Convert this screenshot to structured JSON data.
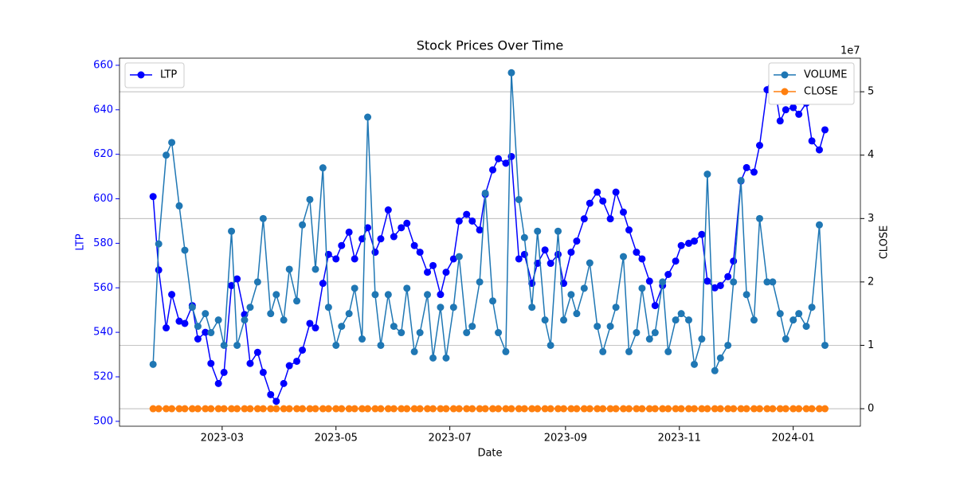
{
  "chart_data": {
    "type": "line",
    "title": "Stock Prices Over Time",
    "xlabel": "Date",
    "ylabel": "LTP",
    "y2label": "CLOSE",
    "y2_offset": "1e7",
    "x": [
      "2023-01-23",
      "2023-01-26",
      "2023-01-30",
      "2023-02-02",
      "2023-02-06",
      "2023-02-09",
      "2023-02-13",
      "2023-02-16",
      "2023-02-20",
      "2023-02-23",
      "2023-02-27",
      "2023-03-02",
      "2023-03-06",
      "2023-03-09",
      "2023-03-13",
      "2023-03-16",
      "2023-03-20",
      "2023-03-23",
      "2023-03-27",
      "2023-03-30",
      "2023-04-03",
      "2023-04-06",
      "2023-04-10",
      "2023-04-13",
      "2023-04-17",
      "2023-04-20",
      "2023-04-24",
      "2023-04-27",
      "2023-05-01",
      "2023-05-04",
      "2023-05-08",
      "2023-05-11",
      "2023-05-15",
      "2023-05-18",
      "2023-05-22",
      "2023-05-25",
      "2023-05-29",
      "2023-06-01",
      "2023-06-05",
      "2023-06-08",
      "2023-06-12",
      "2023-06-15",
      "2023-06-19",
      "2023-06-22",
      "2023-06-26",
      "2023-06-29",
      "2023-07-03",
      "2023-07-06",
      "2023-07-10",
      "2023-07-13",
      "2023-07-17",
      "2023-07-20",
      "2023-07-24",
      "2023-07-27",
      "2023-07-31",
      "2023-08-03",
      "2023-08-07",
      "2023-08-10",
      "2023-08-14",
      "2023-08-17",
      "2023-08-21",
      "2023-08-24",
      "2023-08-28",
      "2023-08-31",
      "2023-09-04",
      "2023-09-07",
      "2023-09-11",
      "2023-09-14",
      "2023-09-18",
      "2023-09-21",
      "2023-09-25",
      "2023-09-28",
      "2023-10-02",
      "2023-10-05",
      "2023-10-09",
      "2023-10-12",
      "2023-10-16",
      "2023-10-19",
      "2023-10-23",
      "2023-10-26",
      "2023-10-30",
      "2023-11-02",
      "2023-11-06",
      "2023-11-09",
      "2023-11-13",
      "2023-11-16",
      "2023-11-20",
      "2023-11-23",
      "2023-11-27",
      "2023-11-30",
      "2023-12-04",
      "2023-12-07",
      "2023-12-11",
      "2023-12-14",
      "2023-12-18",
      "2023-12-21",
      "2023-12-25",
      "2023-12-28",
      "2024-01-01",
      "2024-01-04",
      "2024-01-08",
      "2024-01-11",
      "2024-01-15",
      "2024-01-18"
    ],
    "series": [
      {
        "name": "LTP",
        "color": "#0000ff",
        "axis": "y",
        "values": [
          601,
          568,
          542,
          557,
          545,
          544,
          552,
          537,
          540,
          526,
          517,
          522,
          561,
          564,
          548,
          526,
          531,
          522,
          512,
          509,
          517,
          525,
          527,
          532,
          544,
          542,
          562,
          575,
          573,
          579,
          585,
          573,
          582,
          587,
          576,
          582,
          595,
          583,
          587,
          589,
          579,
          576,
          567,
          570,
          557,
          567,
          573,
          590,
          593,
          590,
          586,
          602,
          613,
          618,
          616,
          619,
          573,
          575,
          562,
          571,
          577,
          571,
          575,
          562,
          576,
          581,
          591,
          598,
          603,
          599,
          591,
          603,
          594,
          586,
          576,
          573,
          563,
          552,
          561,
          566,
          572,
          579,
          580,
          581,
          584,
          563,
          560,
          561,
          565,
          572,
          608,
          614,
          612,
          624,
          649,
          656,
          635,
          640,
          641,
          638,
          643,
          626,
          622,
          631
        ]
      },
      {
        "name": "VOLUME",
        "color": "#1f77b4",
        "axis": "y2",
        "values": [
          7000000,
          26000000,
          40000000,
          42000000,
          32000000,
          25000000,
          16000000,
          13000000,
          15000000,
          12000000,
          14000000,
          10000000,
          28000000,
          10000000,
          14000000,
          16000000,
          20000000,
          30000000,
          15000000,
          18000000,
          14000000,
          22000000,
          17000000,
          29000000,
          33000000,
          22000000,
          38000000,
          16000000,
          10000000,
          13000000,
          15000000,
          19000000,
          11000000,
          46000000,
          18000000,
          10000000,
          18000000,
          13000000,
          12000000,
          19000000,
          9000000,
          12000000,
          18000000,
          8000000,
          16000000,
          8000000,
          16000000,
          24000000,
          12000000,
          13000000,
          20000000,
          34000000,
          17000000,
          12000000,
          9000000,
          53000000,
          33000000,
          27000000,
          16000000,
          28000000,
          14000000,
          10000000,
          28000000,
          14000000,
          18000000,
          15000000,
          19000000,
          23000000,
          13000000,
          9000000,
          13000000,
          16000000,
          24000000,
          9000000,
          12000000,
          19000000,
          11000000,
          12000000,
          20000000,
          9000000,
          14000000,
          15000000,
          14000000,
          7000000,
          11000000,
          37000000,
          6000000,
          8000000,
          10000000,
          20000000,
          36000000,
          18000000,
          14000000,
          30000000,
          20000000,
          20000000,
          15000000,
          11000000,
          14000000,
          15000000,
          13000000,
          16000000,
          29000000,
          10000000
        ]
      },
      {
        "name": "CLOSE",
        "color": "#ff7f0e",
        "axis": "y2",
        "values": [
          601,
          568,
          542,
          557,
          545,
          544,
          552,
          537,
          540,
          526,
          517,
          522,
          561,
          564,
          548,
          526,
          531,
          522,
          512,
          509,
          517,
          525,
          527,
          532,
          544,
          542,
          562,
          575,
          573,
          579,
          585,
          573,
          582,
          587,
          576,
          582,
          595,
          583,
          587,
          589,
          579,
          576,
          567,
          570,
          557,
          567,
          573,
          590,
          593,
          590,
          586,
          602,
          613,
          618,
          616,
          619,
          573,
          575,
          562,
          571,
          577,
          571,
          575,
          562,
          576,
          581,
          591,
          598,
          603,
          599,
          591,
          603,
          594,
          586,
          576,
          573,
          563,
          552,
          561,
          566,
          572,
          579,
          580,
          581,
          584,
          563,
          560,
          561,
          565,
          572,
          608,
          614,
          612,
          624,
          649,
          656,
          635,
          640,
          641,
          638,
          643,
          626,
          622,
          631
        ]
      }
    ],
    "xlim": [
      "2023-01-05",
      "2024-02-06"
    ],
    "xticks": [
      {
        "value": "2023-03-01",
        "label": "2023-03"
      },
      {
        "value": "2023-05-01",
        "label": "2023-05"
      },
      {
        "value": "2023-07-01",
        "label": "2023-07"
      },
      {
        "value": "2023-09-01",
        "label": "2023-09"
      },
      {
        "value": "2023-11-01",
        "label": "2023-11"
      },
      {
        "value": "2024-01-01",
        "label": "2024-01"
      }
    ],
    "ylim": [
      497.8,
      663.2
    ],
    "yticks": [
      500,
      520,
      540,
      560,
      580,
      600,
      620,
      640,
      660
    ],
    "y2lim": [
      -2760000,
      55300000
    ],
    "y2ticks": [
      {
        "value": 0,
        "label": "0"
      },
      {
        "value": 10000000,
        "label": "1"
      },
      {
        "value": 20000000,
        "label": "2"
      },
      {
        "value": 30000000,
        "label": "3"
      },
      {
        "value": 40000000,
        "label": "4"
      },
      {
        "value": 50000000,
        "label": "5"
      }
    ],
    "grid": "y2",
    "legend": "upper left",
    "legend2": "upper right"
  }
}
